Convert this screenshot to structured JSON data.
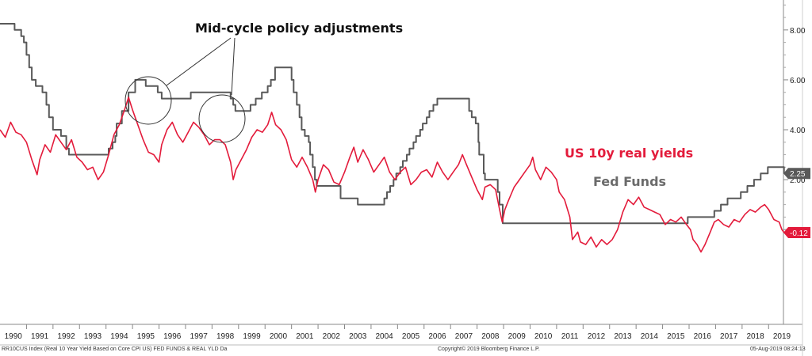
{
  "chart_data": {
    "type": "line",
    "annotation": "Mid-cycle policy adjustments",
    "x_axis": {
      "ticks": [
        "1990",
        "1991",
        "1992",
        "1993",
        "1994",
        "1995",
        "1996",
        "1997",
        "1998",
        "1999",
        "2000",
        "2001",
        "2002",
        "2003",
        "2004",
        "2005",
        "2006",
        "2007",
        "2008",
        "2009",
        "2010",
        "2011",
        "2012",
        "2013",
        "2014",
        "2015",
        "2016",
        "2017",
        "2018",
        "2019"
      ],
      "range": [
        1990,
        2019.62
      ]
    },
    "y_axis": {
      "side": "right",
      "ticks": [
        "8.00",
        "6.00",
        "4.00",
        "2.00",
        "0.00"
      ],
      "range": [
        -3.8,
        9.2
      ]
    },
    "grid": false,
    "legend_placement": "right",
    "last_value_labels": [
      {
        "series": "Fed Funds",
        "text": "2.25",
        "value": 2.25,
        "color": "#595959"
      },
      {
        "series": "US 10y real yields",
        "text": "-0.12",
        "value": -0.12,
        "color": "#e31b3b"
      }
    ],
    "series": [
      {
        "name": "Fed Funds",
        "color": "#595959",
        "step": true,
        "points": [
          [
            1990.0,
            8.25
          ],
          [
            1990.55,
            8.0
          ],
          [
            1990.8,
            7.75
          ],
          [
            1990.9,
            7.5
          ],
          [
            1991.0,
            7.0
          ],
          [
            1991.1,
            6.5
          ],
          [
            1991.2,
            6.0
          ],
          [
            1991.35,
            5.75
          ],
          [
            1991.6,
            5.5
          ],
          [
            1991.75,
            5.0
          ],
          [
            1991.85,
            4.5
          ],
          [
            1992.0,
            4.0
          ],
          [
            1992.3,
            3.75
          ],
          [
            1992.5,
            3.25
          ],
          [
            1992.6,
            3.0
          ],
          [
            1994.1,
            3.25
          ],
          [
            1994.25,
            3.5
          ],
          [
            1994.35,
            3.75
          ],
          [
            1994.4,
            4.25
          ],
          [
            1994.6,
            4.75
          ],
          [
            1994.85,
            5.5
          ],
          [
            1995.1,
            6.0
          ],
          [
            1995.5,
            5.75
          ],
          [
            1995.95,
            5.5
          ],
          [
            1996.1,
            5.25
          ],
          [
            1997.2,
            5.5
          ],
          [
            1998.7,
            5.25
          ],
          [
            1998.8,
            5.0
          ],
          [
            1998.88,
            4.75
          ],
          [
            1999.45,
            5.0
          ],
          [
            1999.65,
            5.25
          ],
          [
            1999.88,
            5.5
          ],
          [
            2000.1,
            5.75
          ],
          [
            2000.22,
            6.0
          ],
          [
            2000.38,
            6.5
          ],
          [
            2001.0,
            6.0
          ],
          [
            2001.08,
            5.5
          ],
          [
            2001.2,
            5.0
          ],
          [
            2001.3,
            4.5
          ],
          [
            2001.38,
            4.0
          ],
          [
            2001.5,
            3.75
          ],
          [
            2001.65,
            3.5
          ],
          [
            2001.7,
            3.0
          ],
          [
            2001.8,
            2.5
          ],
          [
            2001.88,
            2.0
          ],
          [
            2001.95,
            1.75
          ],
          [
            2002.85,
            1.25
          ],
          [
            2003.5,
            1.0
          ],
          [
            2004.5,
            1.25
          ],
          [
            2004.6,
            1.5
          ],
          [
            2004.72,
            1.75
          ],
          [
            2004.85,
            2.0
          ],
          [
            2004.95,
            2.25
          ],
          [
            2005.1,
            2.5
          ],
          [
            2005.2,
            2.75
          ],
          [
            2005.35,
            3.0
          ],
          [
            2005.45,
            3.25
          ],
          [
            2005.6,
            3.5
          ],
          [
            2005.7,
            3.75
          ],
          [
            2005.85,
            4.0
          ],
          [
            2005.95,
            4.25
          ],
          [
            2006.1,
            4.5
          ],
          [
            2006.2,
            4.75
          ],
          [
            2006.35,
            5.0
          ],
          [
            2006.5,
            5.25
          ],
          [
            2007.7,
            4.75
          ],
          [
            2007.8,
            4.5
          ],
          [
            2007.95,
            4.25
          ],
          [
            2008.05,
            3.5
          ],
          [
            2008.08,
            3.0
          ],
          [
            2008.25,
            2.25
          ],
          [
            2008.3,
            2.0
          ],
          [
            2008.78,
            1.5
          ],
          [
            2008.85,
            1.0
          ],
          [
            2008.97,
            0.25
          ],
          [
            2015.95,
            0.5
          ],
          [
            2016.95,
            0.75
          ],
          [
            2017.2,
            1.0
          ],
          [
            2017.45,
            1.25
          ],
          [
            2017.95,
            1.5
          ],
          [
            2018.2,
            1.75
          ],
          [
            2018.45,
            2.0
          ],
          [
            2018.7,
            2.25
          ],
          [
            2018.97,
            2.5
          ],
          [
            2019.58,
            2.25
          ]
        ]
      },
      {
        "name": "US 10y real yields",
        "color": "#e31b3b",
        "points": [
          [
            1990.0,
            4.0
          ],
          [
            1990.2,
            3.7
          ],
          [
            1990.4,
            4.3
          ],
          [
            1990.6,
            3.9
          ],
          [
            1990.8,
            3.8
          ],
          [
            1991.0,
            3.5
          ],
          [
            1991.2,
            2.8
          ],
          [
            1991.4,
            2.2
          ],
          [
            1991.5,
            2.8
          ],
          [
            1991.7,
            3.4
          ],
          [
            1991.9,
            3.1
          ],
          [
            1992.1,
            3.8
          ],
          [
            1992.3,
            3.5
          ],
          [
            1992.5,
            3.2
          ],
          [
            1992.7,
            3.6
          ],
          [
            1992.9,
            2.9
          ],
          [
            1993.1,
            2.7
          ],
          [
            1993.3,
            2.4
          ],
          [
            1993.5,
            2.5
          ],
          [
            1993.7,
            2.0
          ],
          [
            1993.9,
            2.3
          ],
          [
            1994.1,
            3.0
          ],
          [
            1994.3,
            3.8
          ],
          [
            1994.5,
            4.2
          ],
          [
            1994.7,
            4.8
          ],
          [
            1994.85,
            5.3
          ],
          [
            1995.0,
            4.8
          ],
          [
            1995.2,
            4.2
          ],
          [
            1995.4,
            3.6
          ],
          [
            1995.6,
            3.1
          ],
          [
            1995.8,
            3.0
          ],
          [
            1996.0,
            2.7
          ],
          [
            1996.1,
            3.4
          ],
          [
            1996.3,
            4.0
          ],
          [
            1996.5,
            4.3
          ],
          [
            1996.7,
            3.8
          ],
          [
            1996.9,
            3.5
          ],
          [
            1997.1,
            3.9
          ],
          [
            1997.3,
            4.3
          ],
          [
            1997.5,
            4.1
          ],
          [
            1997.7,
            3.8
          ],
          [
            1997.9,
            3.4
          ],
          [
            1998.1,
            3.6
          ],
          [
            1998.3,
            3.6
          ],
          [
            1998.5,
            3.4
          ],
          [
            1998.7,
            2.7
          ],
          [
            1998.8,
            2.0
          ],
          [
            1998.9,
            2.4
          ],
          [
            1999.1,
            2.8
          ],
          [
            1999.3,
            3.2
          ],
          [
            1999.5,
            3.7
          ],
          [
            1999.7,
            4.0
          ],
          [
            1999.9,
            3.9
          ],
          [
            2000.1,
            4.2
          ],
          [
            2000.25,
            4.7
          ],
          [
            2000.4,
            4.2
          ],
          [
            2000.6,
            4.0
          ],
          [
            2000.8,
            3.6
          ],
          [
            2001.0,
            2.8
          ],
          [
            2001.2,
            2.5
          ],
          [
            2001.4,
            2.9
          ],
          [
            2001.6,
            2.5
          ],
          [
            2001.8,
            2.0
          ],
          [
            2001.9,
            1.5
          ],
          [
            2002.0,
            2.0
          ],
          [
            2002.2,
            2.6
          ],
          [
            2002.4,
            2.4
          ],
          [
            2002.6,
            1.9
          ],
          [
            2002.8,
            1.8
          ],
          [
            2003.0,
            2.3
          ],
          [
            2003.2,
            2.9
          ],
          [
            2003.35,
            3.3
          ],
          [
            2003.5,
            2.7
          ],
          [
            2003.7,
            3.2
          ],
          [
            2003.9,
            2.8
          ],
          [
            2004.1,
            2.3
          ],
          [
            2004.3,
            2.6
          ],
          [
            2004.5,
            2.9
          ],
          [
            2004.7,
            2.3
          ],
          [
            2004.9,
            2.0
          ],
          [
            2005.1,
            2.3
          ],
          [
            2005.3,
            2.5
          ],
          [
            2005.5,
            1.8
          ],
          [
            2005.7,
            2.0
          ],
          [
            2005.9,
            2.3
          ],
          [
            2006.1,
            2.4
          ],
          [
            2006.3,
            2.1
          ],
          [
            2006.5,
            2.7
          ],
          [
            2006.7,
            2.3
          ],
          [
            2006.9,
            2.0
          ],
          [
            2007.1,
            2.3
          ],
          [
            2007.3,
            2.6
          ],
          [
            2007.45,
            3.0
          ],
          [
            2007.6,
            2.6
          ],
          [
            2007.8,
            2.1
          ],
          [
            2008.0,
            1.6
          ],
          [
            2008.2,
            1.2
          ],
          [
            2008.3,
            1.7
          ],
          [
            2008.5,
            1.8
          ],
          [
            2008.7,
            1.6
          ],
          [
            2008.85,
            0.8
          ],
          [
            2008.95,
            0.3
          ],
          [
            2009.05,
            0.8
          ],
          [
            2009.2,
            1.2
          ],
          [
            2009.4,
            1.7
          ],
          [
            2009.6,
            2.0
          ],
          [
            2009.8,
            2.3
          ],
          [
            2010.0,
            2.6
          ],
          [
            2010.1,
            2.9
          ],
          [
            2010.2,
            2.4
          ],
          [
            2010.4,
            2.0
          ],
          [
            2010.6,
            2.5
          ],
          [
            2010.8,
            2.3
          ],
          [
            2011.0,
            2.0
          ],
          [
            2011.1,
            1.5
          ],
          [
            2011.3,
            1.2
          ],
          [
            2011.5,
            0.5
          ],
          [
            2011.6,
            -0.4
          ],
          [
            2011.8,
            -0.1
          ],
          [
            2011.9,
            -0.5
          ],
          [
            2012.1,
            -0.6
          ],
          [
            2012.3,
            -0.3
          ],
          [
            2012.5,
            -0.7
          ],
          [
            2012.7,
            -0.4
          ],
          [
            2012.9,
            -0.6
          ],
          [
            2013.1,
            -0.4
          ],
          [
            2013.3,
            0.0
          ],
          [
            2013.5,
            0.7
          ],
          [
            2013.7,
            1.2
          ],
          [
            2013.9,
            1.0
          ],
          [
            2014.1,
            1.3
          ],
          [
            2014.3,
            0.9
          ],
          [
            2014.5,
            0.8
          ],
          [
            2014.7,
            0.7
          ],
          [
            2014.9,
            0.6
          ],
          [
            2015.1,
            0.2
          ],
          [
            2015.3,
            0.4
          ],
          [
            2015.5,
            0.3
          ],
          [
            2015.7,
            0.5
          ],
          [
            2015.9,
            0.2
          ],
          [
            2016.05,
            0.0
          ],
          [
            2016.15,
            -0.4
          ],
          [
            2016.3,
            -0.6
          ],
          [
            2016.45,
            -0.9
          ],
          [
            2016.6,
            -0.6
          ],
          [
            2016.8,
            -0.1
          ],
          [
            2016.95,
            0.3
          ],
          [
            2017.1,
            0.4
          ],
          [
            2017.3,
            0.2
          ],
          [
            2017.5,
            0.1
          ],
          [
            2017.7,
            0.4
          ],
          [
            2017.9,
            0.3
          ],
          [
            2018.1,
            0.6
          ],
          [
            2018.3,
            0.8
          ],
          [
            2018.5,
            0.7
          ],
          [
            2018.7,
            0.9
          ],
          [
            2018.85,
            1.0
          ],
          [
            2019.0,
            0.8
          ],
          [
            2019.2,
            0.4
          ],
          [
            2019.4,
            0.3
          ],
          [
            2019.5,
            0.0
          ],
          [
            2019.58,
            -0.12
          ]
        ]
      }
    ]
  },
  "legend": {
    "real_yields_label": "US 10y real yields",
    "fed_funds_label": "Fed Funds"
  },
  "footer": {
    "source": "RR10CUS Index (Real 10 Year Yield Based on Core CPI US) FED FUNDS & REAL YLD  Da",
    "copyright": "Copyright© 2019 Bloomberg Finance L.P.",
    "timestamp": "05-Aug-2019 08:24:13"
  }
}
